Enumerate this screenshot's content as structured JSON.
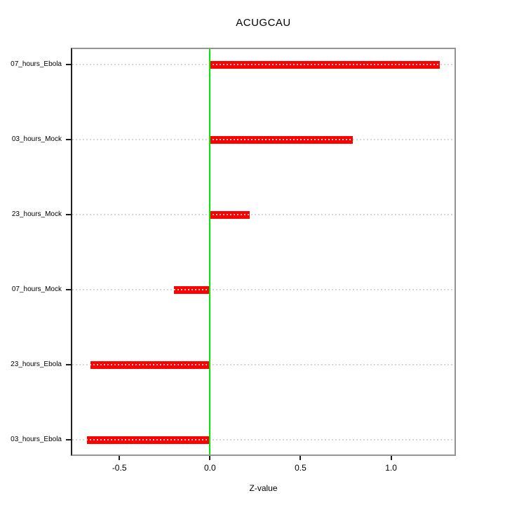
{
  "title": "ACUGCAU",
  "x_axis": {
    "label": "Z-value",
    "tick_labels": [
      "-0.5",
      "0.0",
      "0.5",
      "1.0"
    ]
  },
  "chart_data": {
    "type": "bar",
    "orientation": "horizontal",
    "title": "ACUGCAU",
    "xlabel": "Z-value",
    "ylabel": "",
    "categories": [
      "07_hours_Ebola",
      "03_hours_Mock",
      "23_hours_Mock",
      "07_hours_Mock",
      "23_hours_Ebola",
      "03_hours_Ebola"
    ],
    "values": [
      1.27,
      0.79,
      0.22,
      -0.2,
      -0.66,
      -0.68
    ],
    "xlim": [
      -0.76,
      1.35
    ],
    "x_ticks": [
      -0.5,
      0.0,
      0.5,
      1.0
    ],
    "x_tick_labels": [
      "-0.5",
      "0.0",
      "0.5",
      "1.0"
    ],
    "bar_color": "#ff0000",
    "zero_line_color": "#00e800",
    "gridline_color": "#d6d6d6",
    "grid": "dotted-horizontal-per-category",
    "legend": "none"
  }
}
